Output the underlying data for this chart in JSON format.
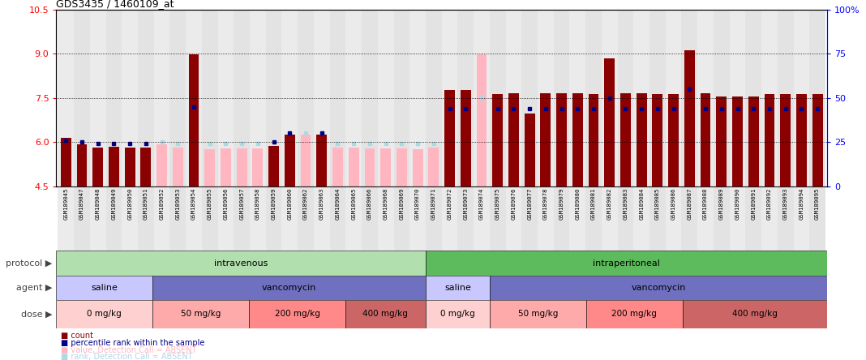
{
  "title": "GDS3435 / 1460109_at",
  "samples": [
    "GSM189045",
    "GSM189047",
    "GSM189048",
    "GSM189049",
    "GSM189050",
    "GSM189051",
    "GSM189052",
    "GSM189053",
    "GSM189054",
    "GSM189055",
    "GSM189056",
    "GSM189057",
    "GSM189058",
    "GSM189059",
    "GSM189060",
    "GSM189062",
    "GSM189063",
    "GSM189064",
    "GSM189065",
    "GSM189066",
    "GSM189068",
    "GSM189069",
    "GSM189070",
    "GSM189071",
    "GSM189072",
    "GSM189073",
    "GSM189074",
    "GSM189075",
    "GSM189076",
    "GSM189077",
    "GSM189078",
    "GSM189079",
    "GSM189080",
    "GSM189081",
    "GSM189082",
    "GSM189083",
    "GSM189084",
    "GSM189085",
    "GSM189086",
    "GSM189087",
    "GSM189088",
    "GSM189089",
    "GSM189090",
    "GSM189091",
    "GSM189092",
    "GSM189093",
    "GSM189094",
    "GSM189095"
  ],
  "values_present": [
    6.15,
    5.92,
    5.82,
    5.83,
    5.82,
    5.82,
    null,
    null,
    8.98,
    null,
    null,
    null,
    null,
    5.87,
    6.25,
    null,
    6.25,
    null,
    null,
    null,
    null,
    null,
    null,
    null,
    7.77,
    7.77,
    null,
    7.62,
    7.65,
    6.96,
    7.65,
    7.67,
    7.67,
    7.62,
    8.85,
    7.67,
    7.67,
    7.62,
    7.62,
    9.12,
    7.67,
    7.55,
    7.55,
    7.55,
    7.62,
    7.62,
    7.62,
    7.62
  ],
  "values_absent": [
    null,
    null,
    null,
    null,
    null,
    null,
    5.92,
    5.82,
    null,
    5.75,
    5.77,
    5.77,
    5.77,
    null,
    null,
    6.25,
    null,
    5.82,
    5.82,
    5.77,
    5.77,
    5.77,
    5.75,
    5.8,
    null,
    null,
    8.97,
    null,
    null,
    null,
    null,
    null,
    null,
    null,
    null,
    null,
    null,
    null,
    null,
    null,
    null,
    null,
    null,
    null,
    null,
    null,
    null,
    null
  ],
  "ranks_present": [
    26,
    25,
    24,
    24,
    24,
    24,
    null,
    null,
    45,
    null,
    null,
    null,
    null,
    25,
    30,
    null,
    30,
    null,
    null,
    null,
    null,
    null,
    null,
    null,
    44,
    44,
    null,
    44,
    44,
    44,
    44,
    44,
    44,
    44,
    50,
    44,
    44,
    44,
    44,
    55,
    44,
    44,
    44,
    44,
    44,
    44,
    44,
    44
  ],
  "ranks_absent": [
    null,
    null,
    null,
    null,
    null,
    null,
    25,
    24,
    null,
    24,
    24,
    24,
    24,
    null,
    null,
    30,
    null,
    24,
    24,
    24,
    24,
    24,
    24,
    24,
    null,
    null,
    50,
    null,
    null,
    null,
    null,
    null,
    null,
    null,
    null,
    null,
    null,
    null,
    null,
    null,
    null,
    null,
    null,
    null,
    null,
    null,
    null,
    null
  ],
  "ylim": [
    4.5,
    10.5
  ],
  "yticks_left": [
    4.5,
    6.0,
    7.5,
    9.0,
    10.5
  ],
  "y2lim": [
    0,
    100
  ],
  "y2ticks": [
    0,
    25,
    50,
    75,
    100
  ],
  "color_dark_red": "#8B0000",
  "color_light_pink": "#FFB6C1",
  "color_dark_blue": "#00008B",
  "color_light_blue": "#ADD8E6",
  "proto_iv_color": "#B2DFAE",
  "proto_ip_color": "#5DBB5D",
  "agent_saline_color": "#C8C8FF",
  "agent_vancomycin_color": "#7070C0",
  "dose_0mg_color": "#FFD0D0",
  "dose_50mg_color": "#FFAAAA",
  "dose_200mg_color": "#FF8888",
  "dose_400mg_color": "#CC6666",
  "xtick_bg_even": "#D8D8D8",
  "xtick_bg_odd": "#C8C8C8"
}
